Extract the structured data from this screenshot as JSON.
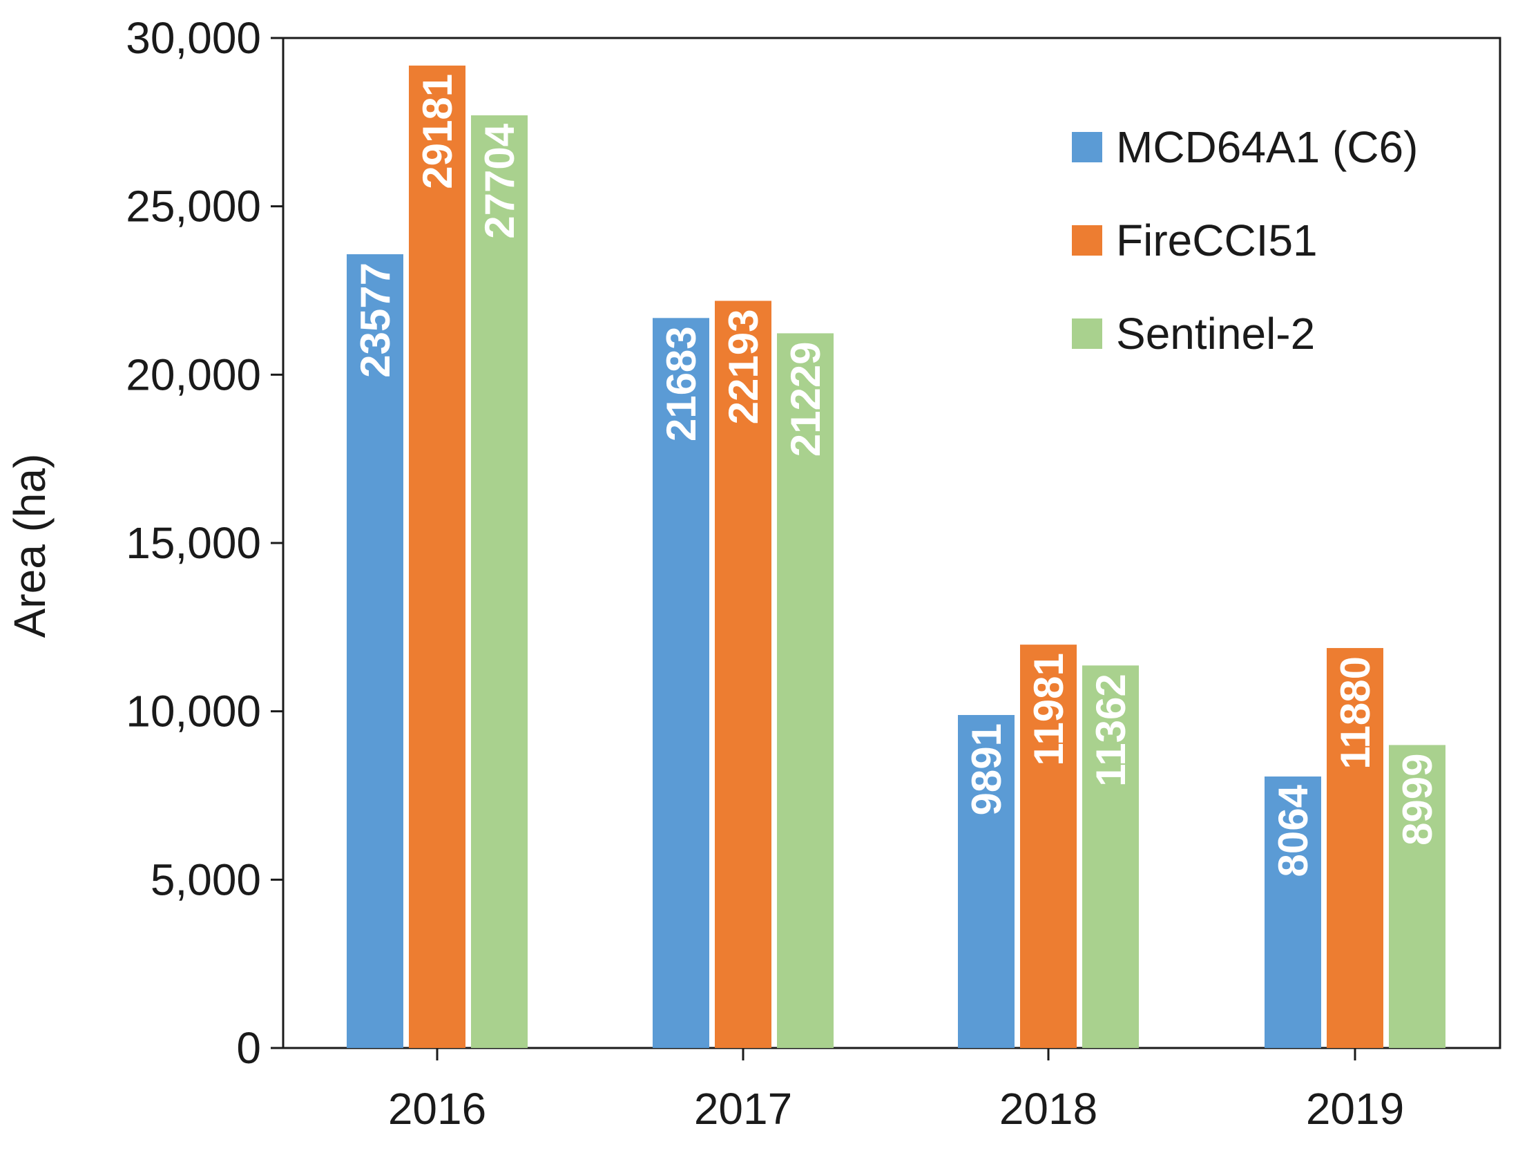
{
  "chart_data": {
    "type": "bar",
    "title": "",
    "xlabel": "",
    "ylabel": "Area (ha)",
    "categories": [
      "2016",
      "2017",
      "2018",
      "2019"
    ],
    "ylim": [
      0,
      30000
    ],
    "yticks": [
      0,
      5000,
      10000,
      15000,
      20000,
      25000,
      30000
    ],
    "ytick_labels": [
      "0",
      "5,000",
      "10,000",
      "15,000",
      "20,000",
      "25,000",
      "30,000"
    ],
    "grid": false,
    "legend_position": "top-right",
    "series": [
      {
        "name": "MCD64A1 (C6)",
        "color": "#5b9bd5",
        "values": [
          23577,
          21683,
          9891,
          8064
        ]
      },
      {
        "name": "FireCCI51",
        "color": "#ed7d31",
        "values": [
          29181,
          22193,
          11981,
          11880
        ]
      },
      {
        "name": "Sentinel-2",
        "color": "#a9d18e",
        "values": [
          27704,
          21229,
          11362,
          8999
        ]
      }
    ]
  }
}
